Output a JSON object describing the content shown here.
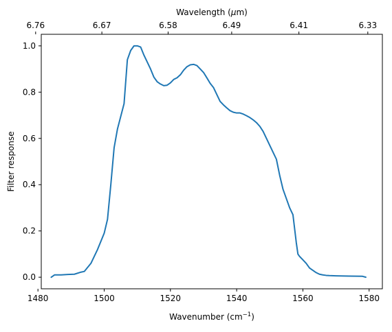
{
  "chart_data": {
    "type": "line",
    "title": "",
    "xlabel": "Wavenumber (cm",
    "xlabel_sup": "−1",
    "xlabel_close": ")",
    "ylabel": "Filter response",
    "top_xlabel": "Wavelength (",
    "top_xlabel_mu": "μ",
    "top_xlabel_close": "m)",
    "xlim": [
      1481,
      1584
    ],
    "ylim": [
      -0.05,
      1.05
    ],
    "x_ticks": [
      1480,
      1500,
      1520,
      1540,
      1560,
      1580
    ],
    "x_tick_labels": [
      "1480",
      "1500",
      "1520",
      "1540",
      "1560",
      "1580"
    ],
    "y_ticks": [
      0.0,
      0.2,
      0.4,
      0.6,
      0.8,
      1.0
    ],
    "y_tick_labels": [
      "0.0",
      "0.2",
      "0.4",
      "0.6",
      "0.8",
      "1.0"
    ],
    "top_ticks": [
      {
        "at": 1479.3,
        "label": "6.76"
      },
      {
        "at": 1499.3,
        "label": "6.67"
      },
      {
        "at": 1519.3,
        "label": "6.58"
      },
      {
        "at": 1538.5,
        "label": "6.49"
      },
      {
        "at": 1558.8,
        "label": "6.41"
      },
      {
        "at": 1579.6,
        "label": "6.33"
      }
    ],
    "line_color": "#1f77b4",
    "grid": false,
    "series": [
      {
        "x": [
          1484,
          1485,
          1487,
          1489,
          1491,
          1493,
          1494,
          1496,
          1498,
          1500,
          1501,
          1502,
          1503,
          1504,
          1506,
          1507,
          1508,
          1509,
          1510,
          1511,
          1512,
          1513,
          1514,
          1515,
          1516,
          1517,
          1518,
          1519,
          1520,
          1521,
          1522,
          1523,
          1524,
          1525,
          1526,
          1527,
          1528,
          1529,
          1530,
          1531,
          1532,
          1533,
          1534,
          1535,
          1536,
          1537,
          1538,
          1539,
          1540,
          1541,
          1542,
          1543,
          1544,
          1545,
          1546,
          1547,
          1548,
          1549,
          1550,
          1551,
          1552,
          1553,
          1554,
          1555,
          1556,
          1557,
          1558,
          1558.5,
          1559,
          1560,
          1561,
          1562,
          1563,
          1564,
          1565,
          1566,
          1567,
          1568,
          1570,
          1574,
          1578,
          1579
        ],
        "y": [
          0.0,
          0.01,
          0.01,
          0.012,
          0.013,
          0.022,
          0.025,
          0.06,
          0.12,
          0.19,
          0.25,
          0.4,
          0.56,
          0.64,
          0.75,
          0.94,
          0.98,
          1.0,
          1.0,
          0.995,
          0.96,
          0.93,
          0.9,
          0.865,
          0.845,
          0.835,
          0.828,
          0.83,
          0.84,
          0.855,
          0.862,
          0.875,
          0.895,
          0.91,
          0.918,
          0.92,
          0.915,
          0.9,
          0.885,
          0.862,
          0.838,
          0.82,
          0.79,
          0.76,
          0.745,
          0.732,
          0.72,
          0.713,
          0.71,
          0.71,
          0.705,
          0.698,
          0.69,
          0.68,
          0.668,
          0.652,
          0.63,
          0.6,
          0.57,
          0.54,
          0.51,
          0.44,
          0.38,
          0.34,
          0.3,
          0.27,
          0.15,
          0.1,
          0.09,
          0.075,
          0.06,
          0.04,
          0.03,
          0.02,
          0.013,
          0.01,
          0.008,
          0.007,
          0.006,
          0.005,
          0.004,
          0.0
        ]
      }
    ]
  }
}
